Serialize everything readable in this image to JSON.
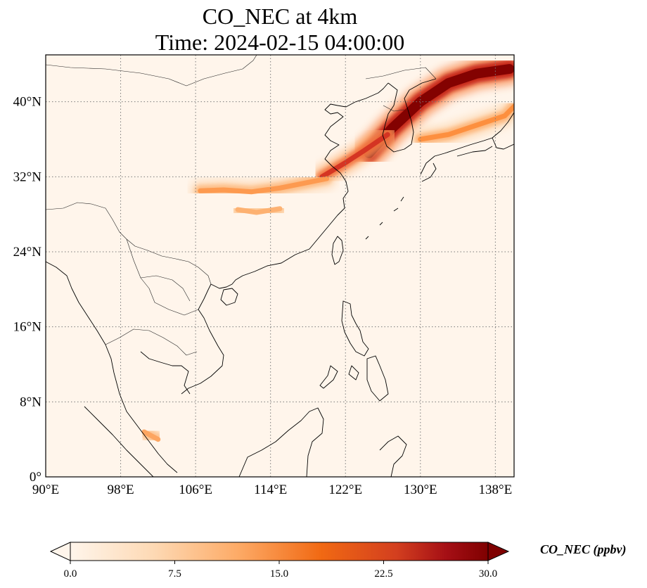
{
  "title": {
    "line1": "CO_NEC at 4km",
    "line2": "Time: 2024-02-15 04:00:00"
  },
  "map": {
    "lon_range": [
      90,
      140
    ],
    "lat_range": [
      0,
      45
    ],
    "lon_ticks": [
      {
        "value": 90,
        "label": "90°E"
      },
      {
        "value": 98,
        "label": "98°E"
      },
      {
        "value": 106,
        "label": "106°E"
      },
      {
        "value": 114,
        "label": "114°E"
      },
      {
        "value": 122,
        "label": "122°E"
      },
      {
        "value": 130,
        "label": "130°E"
      },
      {
        "value": 138,
        "label": "138°E"
      }
    ],
    "lat_ticks": [
      {
        "value": 0,
        "label": "0°"
      },
      {
        "value": 8,
        "label": "8°N"
      },
      {
        "value": 16,
        "label": "16°N"
      },
      {
        "value": 24,
        "label": "24°N"
      },
      {
        "value": 32,
        "label": "32°N"
      },
      {
        "value": 40,
        "label": "40°N"
      }
    ],
    "gridlines": true,
    "colormap": "OrRd",
    "background_color": "#fff5eb"
  },
  "colorbar": {
    "min": 0.0,
    "max": 30.0,
    "ticks": [
      "0.0",
      "7.5",
      "15.0",
      "22.5",
      "30.0"
    ],
    "label": "CO_NEC (ppbv)",
    "extend": "both",
    "stops": [
      "#fff5eb",
      "#fdd0a2",
      "#fd8d3c",
      "#e34a33",
      "#b30000",
      "#7f0000"
    ]
  },
  "plumes": [
    {
      "name": "korea-japan-sea-plume",
      "points": [
        [
          124.5,
          34.5
        ],
        [
          127,
          37.2
        ],
        [
          130,
          40
        ],
        [
          133,
          42
        ],
        [
          136,
          43
        ],
        [
          139.5,
          43.5
        ]
      ],
      "value": 30
    },
    {
      "name": "yellow-sea-plume",
      "points": [
        [
          119.5,
          32
        ],
        [
          122,
          33.5
        ],
        [
          124,
          34.8
        ],
        [
          126.5,
          36.5
        ]
      ],
      "value": 20
    },
    {
      "name": "east-china-band",
      "points": [
        [
          106.5,
          30.5
        ],
        [
          109,
          30.6
        ],
        [
          112,
          30.4
        ],
        [
          115,
          30.8
        ],
        [
          117.5,
          31.3
        ],
        [
          120,
          31.8
        ]
      ],
      "value": 11
    },
    {
      "name": "south-china-patch",
      "points": [
        [
          110.5,
          28.5
        ],
        [
          112.5,
          28.2
        ],
        [
          115,
          28.6
        ]
      ],
      "value": 9
    },
    {
      "name": "japan-plume",
      "points": [
        [
          130,
          36
        ],
        [
          133,
          36.5
        ],
        [
          136,
          37.5
        ],
        [
          139,
          38.5
        ],
        [
          140,
          39.5
        ]
      ],
      "value": 12
    },
    {
      "name": "malay-patch",
      "points": [
        [
          100.5,
          4.8
        ],
        [
          102,
          4.0
        ]
      ],
      "value": 10
    }
  ]
}
